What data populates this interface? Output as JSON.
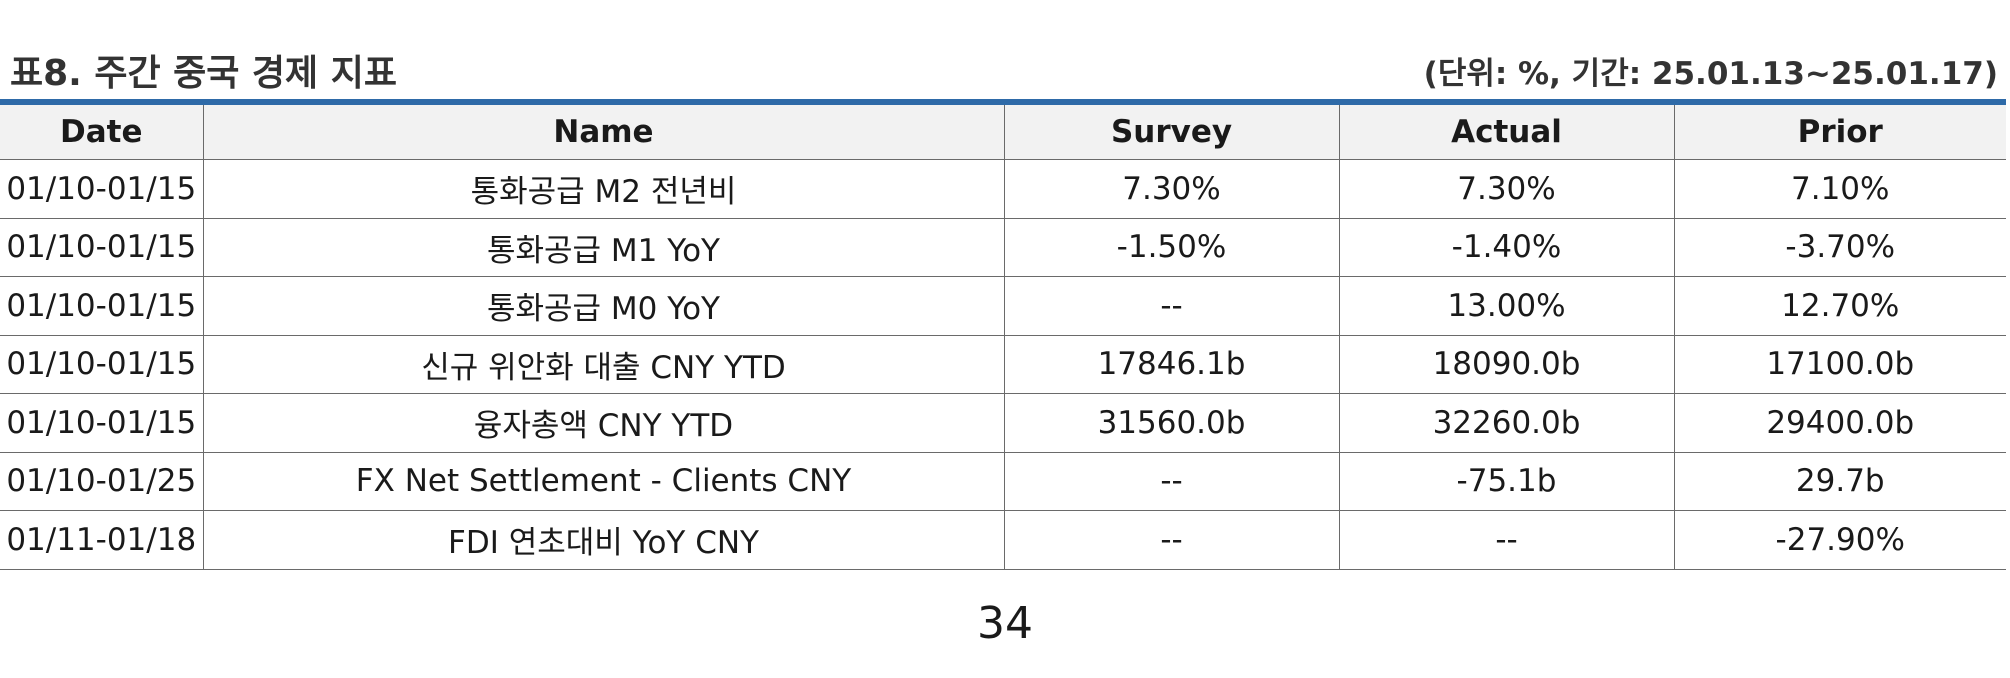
{
  "title": "표8. 주간 중국 경제 지표",
  "unit_note": "(단위: %, 기간: 25.01.13~25.01.17)",
  "table": {
    "headers": [
      "Date",
      "Name",
      "Survey",
      "Actual",
      "Prior"
    ],
    "rows": [
      [
        "01/10-01/15",
        "통화공급 M2 전년비",
        "7.30%",
        "7.30%",
        "7.10%"
      ],
      [
        "01/10-01/15",
        "통화공급 M1 YoY",
        "-1.50%",
        "-1.40%",
        "-3.70%"
      ],
      [
        "01/10-01/15",
        "통화공급 M0 YoY",
        "--",
        "13.00%",
        "12.70%"
      ],
      [
        "01/10-01/15",
        "신규 위안화 대출 CNY YTD",
        "17846.1b",
        "18090.0b",
        "17100.0b"
      ],
      [
        "01/10-01/15",
        "융자총액 CNY YTD",
        "31560.0b",
        "32260.0b",
        "29400.0b"
      ],
      [
        "01/10-01/25",
        "FX Net Settlement - Clients CNY",
        "--",
        "-75.1b",
        "29.7b"
      ],
      [
        "01/11-01/18",
        "FDI 연초대비 YoY CNY",
        "--",
        "--",
        "-27.90%"
      ]
    ]
  },
  "page_number": "34",
  "colors": {
    "top_rule": "#2e6aa8",
    "header_bg": "#f2f2f2"
  }
}
